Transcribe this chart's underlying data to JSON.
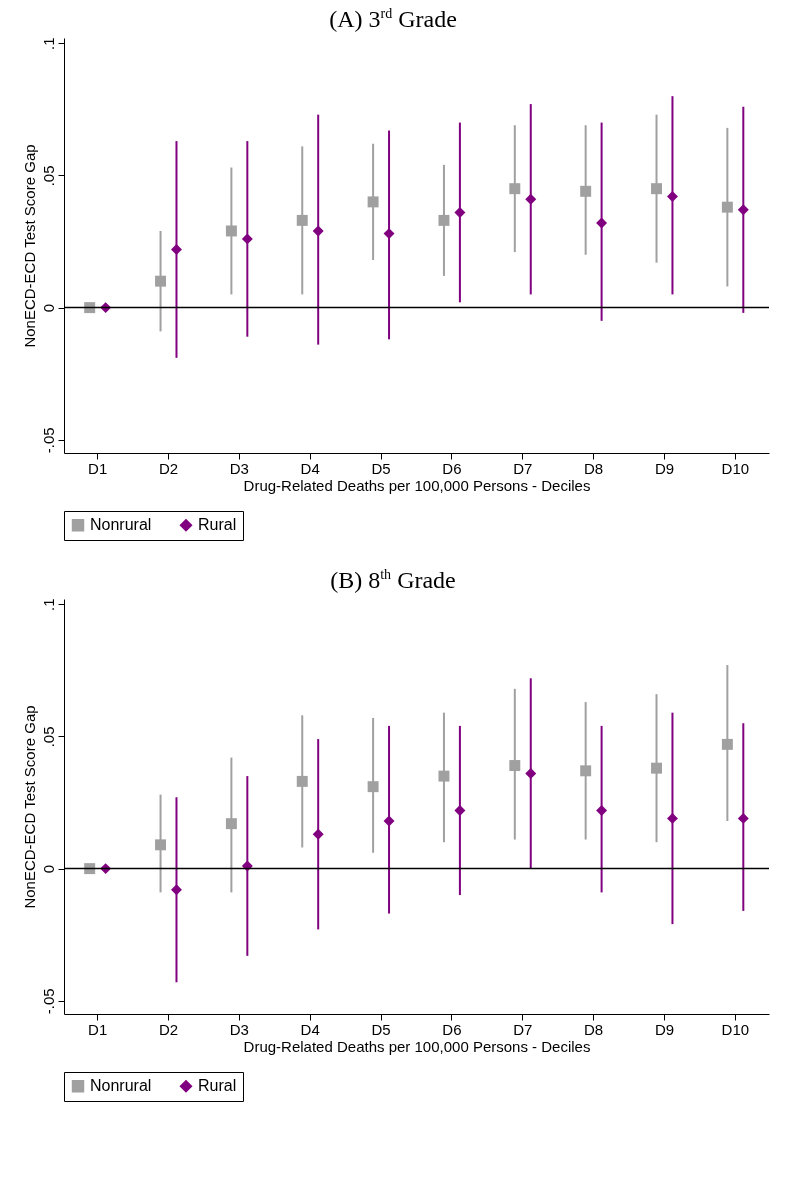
{
  "chart_data": [
    {
      "type": "scatter",
      "title": "(A) 3$^{rd}$ Grade",
      "xlabel": "Drug-Related Deaths per 100,000 Persons - Deciles",
      "ylabel": "NonECD-ECD Test Score Gap",
      "categories": [
        "D1",
        "D2",
        "D3",
        "D4",
        "D5",
        "D6",
        "D7",
        "D8",
        "D9",
        "D10"
      ],
      "series": [
        {
          "name": "Nonrural",
          "color": "#a0a0a0",
          "marker": "square",
          "values": [
            0,
            0.01,
            0.029,
            0.033,
            0.04,
            0.033,
            0.045,
            0.044,
            0.045,
            0.038
          ],
          "errors": [
            null,
            [
              -0.009,
              0.029
            ],
            [
              0.005,
              0.053
            ],
            [
              0.005,
              0.061
            ],
            [
              0.018,
              0.062
            ],
            [
              0.012,
              0.054
            ],
            [
              0.021,
              0.069
            ],
            [
              0.02,
              0.069
            ],
            [
              0.017,
              0.073
            ],
            [
              0.008,
              0.068
            ]
          ]
        },
        {
          "name": "Rural",
          "color": "#800080",
          "marker": "diamond",
          "values": [
            0,
            0.022,
            0.026,
            0.029,
            0.028,
            0.036,
            0.041,
            0.032,
            0.042,
            0.037
          ],
          "errors": [
            null,
            [
              -0.019,
              0.063
            ],
            [
              -0.011,
              0.063
            ],
            [
              -0.014,
              0.073
            ],
            [
              -0.012,
              0.067
            ],
            [
              0.002,
              0.07
            ],
            [
              0.005,
              0.077
            ],
            [
              -0.005,
              0.07
            ],
            [
              0.005,
              0.08
            ],
            [
              -0.002,
              0.076
            ]
          ]
        }
      ],
      "ylim": [
        -0.055,
        0.102
      ],
      "yticks": [
        {
          "value": -0.05,
          "label": "-.05"
        },
        {
          "value": 0,
          "label": "0"
        },
        {
          "value": 0.05,
          "label": ".05"
        },
        {
          "value": 0.1,
          "label": ".1"
        }
      ],
      "ref_lines": [
        {
          "axis": "y",
          "value": 0,
          "color": "#000000"
        }
      ],
      "grid": false,
      "legend": "bottom"
    },
    {
      "type": "scatter",
      "title": "(B) 8$^{th}$ Grade",
      "xlabel": "Drug-Related Deaths per 100,000 Persons - Deciles",
      "ylabel": "NonECD-ECD Test Score Gap",
      "categories": [
        "D1",
        "D2",
        "D3",
        "D4",
        "D5",
        "D6",
        "D7",
        "D8",
        "D9",
        "D10"
      ],
      "series": [
        {
          "name": "Nonrural",
          "color": "#a0a0a0",
          "marker": "square",
          "values": [
            0,
            0.009,
            0.017,
            0.033,
            0.031,
            0.035,
            0.039,
            0.037,
            0.038,
            0.047
          ],
          "errors": [
            null,
            [
              -0.009,
              0.028
            ],
            [
              -0.009,
              0.042
            ],
            [
              0.008,
              0.058
            ],
            [
              0.006,
              0.057
            ],
            [
              0.01,
              0.059
            ],
            [
              0.011,
              0.068
            ],
            [
              0.011,
              0.063
            ],
            [
              0.01,
              0.066
            ],
            [
              0.018,
              0.077
            ]
          ]
        },
        {
          "name": "Rural",
          "color": "#800080",
          "marker": "diamond",
          "values": [
            0,
            -0.008,
            0.001,
            0.013,
            0.018,
            0.022,
            0.036,
            0.022,
            0.019,
            0.019
          ],
          "errors": [
            null,
            [
              -0.043,
              0.027
            ],
            [
              -0.033,
              0.035
            ],
            [
              -0.023,
              0.049
            ],
            [
              -0.017,
              0.054
            ],
            [
              -0.01,
              0.054
            ],
            [
              0.0,
              0.072
            ],
            [
              -0.009,
              0.054
            ],
            [
              -0.021,
              0.059
            ],
            [
              -0.016,
              0.055
            ]
          ]
        }
      ],
      "ylim": [
        -0.055,
        0.102
      ],
      "yticks": [
        {
          "value": -0.05,
          "label": "-.05"
        },
        {
          "value": 0,
          "label": "0"
        },
        {
          "value": 0.05,
          "label": ".05"
        },
        {
          "value": 0.1,
          "label": ".1"
        }
      ],
      "ref_lines": [
        {
          "axis": "y",
          "value": 0,
          "color": "#000000"
        }
      ],
      "grid": false,
      "legend": "bottom"
    }
  ]
}
